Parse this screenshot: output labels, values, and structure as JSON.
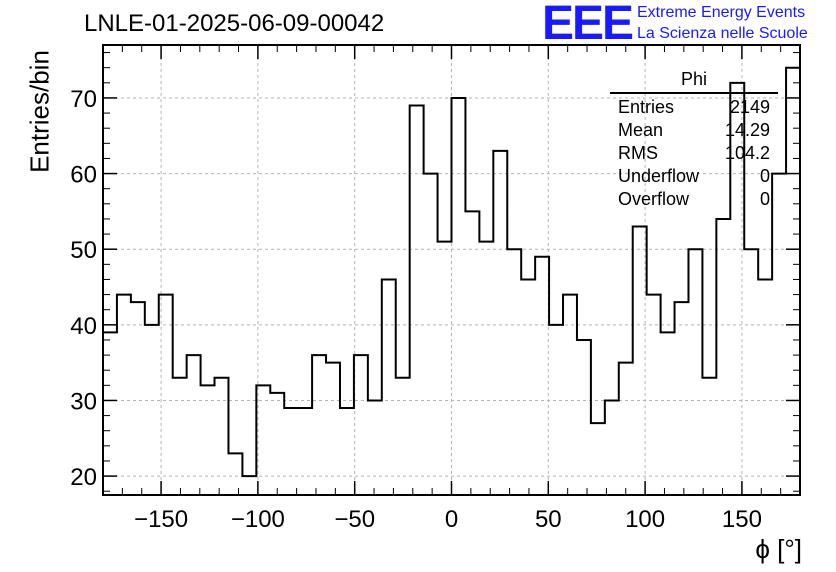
{
  "header": {
    "title": "LNLE-01-2025-06-09-00042",
    "logo": "EEE",
    "brand_line1": "Extreme Energy Events",
    "brand_line2": "La Scienza nelle Scuole"
  },
  "stats": {
    "name": "Phi",
    "rows": [
      {
        "label": "Entries",
        "value": "2149"
      },
      {
        "label": "Mean",
        "value": "14.29"
      },
      {
        "label": "RMS",
        "value": "104.2"
      },
      {
        "label": "Underflow",
        "value": "0"
      },
      {
        "label": "Overflow",
        "value": "0"
      }
    ]
  },
  "chart_data": {
    "type": "bar",
    "style": "step-histogram",
    "title": "LNLE-01-2025-06-09-00042",
    "xlabel": "ϕ [°]",
    "ylabel": "Entries/bin",
    "xlim": [
      -180,
      180
    ],
    "ylim": [
      17.5,
      77
    ],
    "bin_width": 7.2,
    "grid": true,
    "x_ticks": [
      -150,
      -100,
      -50,
      0,
      50,
      100,
      150
    ],
    "x_tick_labels": [
      "−150",
      "−100",
      "−50",
      "0",
      "50",
      "100",
      "150"
    ],
    "y_ticks": [
      20,
      30,
      40,
      50,
      60,
      70
    ],
    "y_tick_labels": [
      "20",
      "30",
      "40",
      "50",
      "60",
      "70"
    ],
    "values": [
      39,
      44,
      43,
      40,
      44,
      33,
      36,
      32,
      33,
      23,
      20,
      32,
      31,
      29,
      29,
      36,
      35,
      29,
      36,
      30,
      46,
      33,
      69,
      60,
      51,
      70,
      55,
      51,
      63,
      50,
      46,
      49,
      40,
      44,
      38,
      27,
      30,
      35,
      53,
      44,
      39,
      43,
      50,
      33,
      54,
      72,
      50,
      46,
      60,
      74
    ],
    "colors": {
      "line": "#000000",
      "grid": "#b4b4b4",
      "brand": "#1a1aff"
    }
  }
}
